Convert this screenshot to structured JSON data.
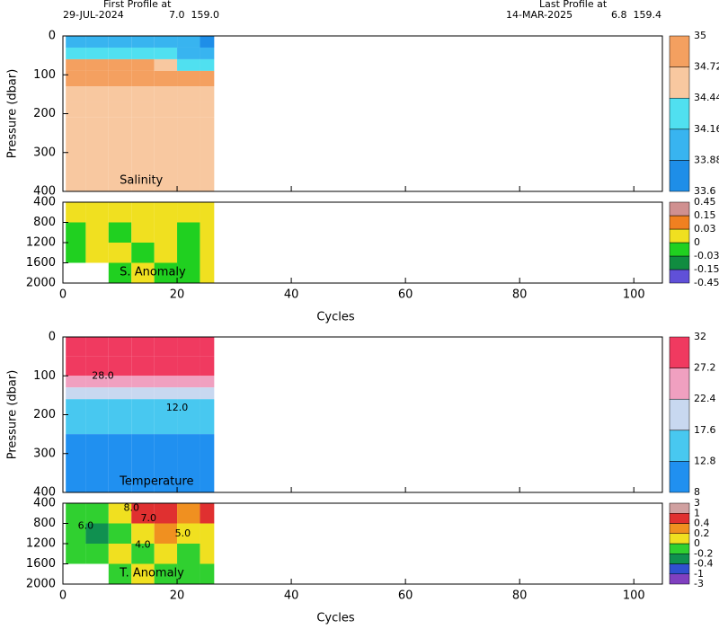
{
  "header": {
    "first_title": "First Profile at",
    "first_date": "29-JUL-2024",
    "first_pos": "7.0  159.0",
    "last_title": "Last Profile at",
    "last_date": "14-MAR-2025",
    "last_pos": "6.8  159.4"
  },
  "chart_data": [
    {
      "type": "heatmap",
      "label": "Salinity",
      "ylabel": "Pressure (dbar)",
      "x": [
        0.5,
        4,
        8,
        12,
        16,
        20,
        24,
        26.5
      ],
      "y": [
        0,
        30,
        60,
        90,
        130,
        170,
        210,
        400
      ],
      "values": [
        [
          34.0,
          34.0,
          34.0,
          34.1,
          34.1,
          33.9,
          33.8
        ],
        [
          34.3,
          34.3,
          34.3,
          34.3,
          34.2,
          34.0,
          33.9
        ],
        [
          34.8,
          34.8,
          34.8,
          34.8,
          34.6,
          34.4,
          34.2
        ],
        [
          34.8,
          34.8,
          34.8,
          34.8,
          34.8,
          34.8,
          34.8
        ],
        [
          34.7,
          34.7,
          34.6,
          34.6,
          34.6,
          34.6,
          34.6
        ],
        [
          34.5,
          34.5,
          34.5,
          34.5,
          34.5,
          34.5,
          34.5
        ],
        [
          34.6,
          34.6,
          34.6,
          34.6,
          34.6,
          34.6,
          34.6
        ]
      ],
      "xlim": [
        0,
        105
      ],
      "xticks": [
        0,
        20,
        40,
        60,
        80,
        100
      ],
      "ylim": [
        0,
        400
      ],
      "yticks": [
        0,
        100,
        200,
        300,
        400
      ],
      "colorbar": {
        "levels": [
          33.6,
          33.88,
          34.16,
          34.44,
          34.72,
          35
        ],
        "colors": [
          "#1e8ee8",
          "#38b4f0",
          "#50e0f0",
          "#f8c8a0",
          "#f4a060"
        ]
      }
    },
    {
      "type": "heatmap",
      "label": "S. Anomaly",
      "x": [
        0.5,
        4,
        8,
        12,
        16,
        20,
        24,
        26.5
      ],
      "y": [
        400,
        800,
        1200,
        1600,
        2000
      ],
      "values": [
        [
          0.01,
          0.01,
          0.01,
          0.01,
          0.01,
          0.01,
          0.01
        ],
        [
          -0.01,
          0.01,
          -0.01,
          0.01,
          0.01,
          -0.01,
          0.01
        ],
        [
          -0.01,
          0.01,
          0.01,
          -0.01,
          0.01,
          -0.01,
          0.01
        ],
        [
          null,
          null,
          -0.01,
          0.01,
          -0.01,
          -0.01,
          0.01
        ]
      ],
      "xlim": [
        0,
        105
      ],
      "xticks": [
        0,
        20,
        40,
        60,
        80,
        100
      ],
      "xlabel": "Cycles",
      "ylim": [
        400,
        2000
      ],
      "yticks": [
        400,
        800,
        1200,
        1600,
        2000
      ],
      "colorbar": {
        "levels": [
          -0.45,
          -0.15,
          -0.03,
          0,
          0.03,
          0.15,
          0.45
        ],
        "colors": [
          "#6050d8",
          "#108c40",
          "#20d020",
          "#f0e020",
          "#f08020",
          "#d09090"
        ]
      }
    },
    {
      "type": "heatmap",
      "label": "Temperature",
      "ylabel": "Pressure (dbar)",
      "x": [
        0.5,
        4,
        8,
        12,
        16,
        20,
        24,
        26.5
      ],
      "y": [
        0,
        50,
        100,
        130,
        160,
        200,
        250,
        400
      ],
      "values": [
        [
          29.5,
          29.5,
          29.5,
          29.5,
          29.5,
          29.5,
          29.5
        ],
        [
          28,
          28,
          28,
          28,
          28,
          28,
          28
        ],
        [
          24,
          24,
          24,
          25,
          24,
          23,
          23
        ],
        [
          20,
          20,
          20,
          20,
          20,
          19,
          19
        ],
        [
          16,
          16,
          16,
          16,
          16,
          16,
          16
        ],
        [
          14,
          14,
          14,
          14,
          14,
          14,
          14
        ],
        [
          10,
          10,
          10,
          10,
          10,
          10,
          10
        ]
      ],
      "xlim": [
        0,
        105
      ],
      "xticks": [
        0,
        20,
        40,
        60,
        80,
        100
      ],
      "ylim": [
        0,
        400
      ],
      "yticks": [
        0,
        100,
        200,
        300,
        400
      ],
      "annotations": [
        {
          "text": "28.0",
          "x": 7,
          "y": 100
        },
        {
          "text": "12.0",
          "x": 20,
          "y": 183
        }
      ],
      "colorbar": {
        "levels": [
          8,
          12.8,
          17.6,
          22.4,
          27.2,
          32
        ],
        "colors": [
          "#2090f0",
          "#48c8f0",
          "#c8d8f0",
          "#f0a0c0",
          "#f03a60"
        ]
      }
    },
    {
      "type": "heatmap",
      "label": "T. Anomaly",
      "x": [
        0.5,
        4,
        8,
        12,
        16,
        20,
        24,
        26.5
      ],
      "y": [
        400,
        800,
        1200,
        1600,
        2000
      ],
      "values": [
        [
          -0.1,
          -0.1,
          0.1,
          0.5,
          0.5,
          0.3,
          0.5
        ],
        [
          -0.1,
          -0.3,
          -0.1,
          0.1,
          0.3,
          0.1,
          0.1
        ],
        [
          -0.1,
          -0.1,
          0.1,
          -0.1,
          0.1,
          -0.1,
          0.1
        ],
        [
          null,
          null,
          -0.1,
          0.1,
          -0.1,
          -0.1,
          -0.1
        ]
      ],
      "xlim": [
        0,
        105
      ],
      "xticks": [
        0,
        20,
        40,
        60,
        80,
        100
      ],
      "xlabel": "Cycles",
      "ylim": [
        400,
        2000
      ],
      "yticks": [
        400,
        800,
        1200,
        1600,
        2000
      ],
      "annotations": [
        {
          "text": "6.0",
          "x": 4,
          "y": 850
        },
        {
          "text": "8.0",
          "x": 12,
          "y": 500
        },
        {
          "text": "7.0",
          "x": 15,
          "y": 700
        },
        {
          "text": "4.0",
          "x": 14,
          "y": 1230
        },
        {
          "text": "5.0",
          "x": 21,
          "y": 1000
        }
      ],
      "colorbar": {
        "levels": [
          -3,
          -1,
          -0.4,
          -0.2,
          0,
          0.2,
          0.4,
          1,
          3
        ],
        "colors": [
          "#8040c0",
          "#3050d0",
          "#109050",
          "#30d030",
          "#f0e020",
          "#f09020",
          "#e03030",
          "#d0a0a0"
        ]
      }
    }
  ]
}
